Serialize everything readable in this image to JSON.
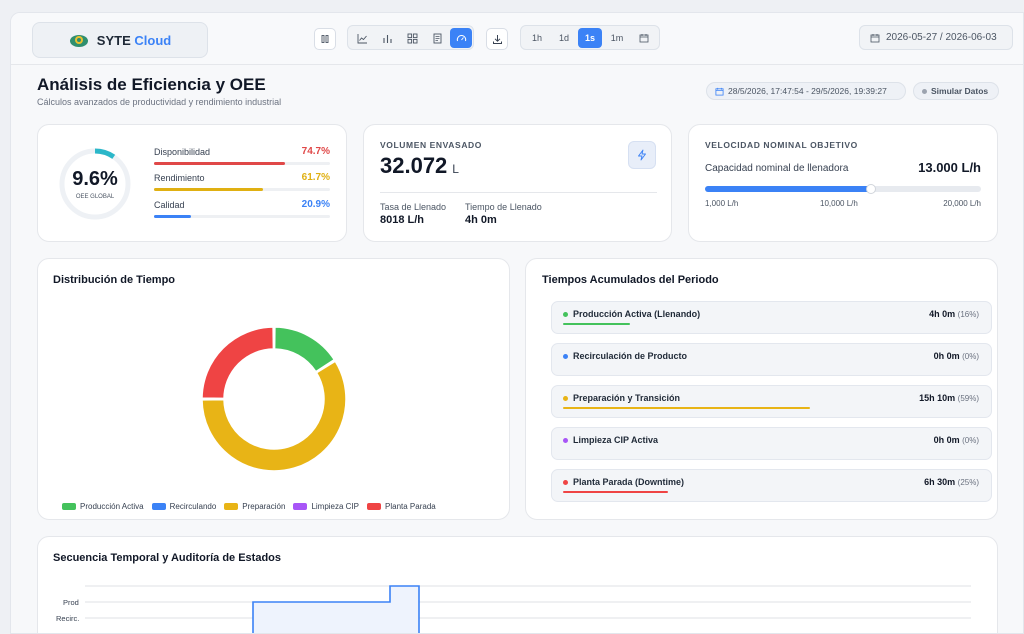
{
  "brand": {
    "name": "SYTE",
    "suffix": "Cloud"
  },
  "toolbar": {
    "views": [
      "chart-line",
      "chart-bar",
      "grid",
      "document",
      "gauge"
    ],
    "active_view": "gauge",
    "time_buttons": [
      "1h",
      "1d",
      "1s",
      "1m"
    ],
    "active_time": "1s",
    "date_range": "2026-05-27 / 2026-06-03"
  },
  "header": {
    "title": "Análisis de Eficiencia y OEE",
    "subtitle": "Cálculos avanzados de productividad y rendimiento industrial",
    "range_pill": "28/5/2026, 17:47:54 - 29/5/2026, 19:39:27",
    "simulate_label": "Simular Datos"
  },
  "oee": {
    "value": "9.6%",
    "label": "OEE GLOBAL",
    "fraction": 0.096,
    "metrics": [
      {
        "name": "Disponibilidad",
        "pct": "74.7%",
        "fraction": 0.747,
        "color": "#e04848"
      },
      {
        "name": "Rendimiento",
        "pct": "61.7%",
        "fraction": 0.617,
        "color": "#e0b012"
      },
      {
        "name": "Calidad",
        "pct": "20.9%",
        "fraction": 0.209,
        "color": "#3b82f6"
      }
    ]
  },
  "volume": {
    "label": "VOLUMEN ENVASADO",
    "value": "32.072",
    "unit": "L",
    "rate_label": "Tasa de Llenado",
    "rate_value": "8018 L/h",
    "time_label": "Tiempo de Llenado",
    "time_value": "4h 0m"
  },
  "speed": {
    "label": "VELOCIDAD NOMINAL OBJETIVO",
    "capacity_label": "Capacidad nominal de llenadora",
    "capacity_value": "13.000 L/h",
    "slider_fraction": 0.6,
    "min": "1,000 L/h",
    "mid": "10,000 L/h",
    "max": "20,000 L/h"
  },
  "distribution": {
    "title": "Distribución de Tiempo",
    "legend": [
      {
        "label": "Producción Activa",
        "color": "#44c25c"
      },
      {
        "label": "Recirculando",
        "color": "#3b82f6"
      },
      {
        "label": "Preparación",
        "color": "#e8b416"
      },
      {
        "label": "Limpieza CIP",
        "color": "#a855f7"
      },
      {
        "label": "Planta Parada",
        "color": "#ef4444"
      }
    ],
    "chart_data": {
      "type": "pie",
      "categories": [
        "Producción Activa",
        "Recirculando",
        "Preparación",
        "Limpieza CIP",
        "Planta Parada"
      ],
      "values": [
        16,
        0,
        59,
        0,
        25
      ]
    }
  },
  "accumulated": {
    "title": "Tiempos Acumulados del Periodo",
    "rows": [
      {
        "name": "Producción Activa (Llenando)",
        "value": "4h 0m",
        "pct": "(16%)",
        "fraction": 0.16,
        "color": "#44c25c"
      },
      {
        "name": "Recirculación de Producto",
        "value": "0h 0m",
        "pct": "(0%)",
        "fraction": 0,
        "color": "#3b82f6"
      },
      {
        "name": "Preparación y Transición",
        "value": "15h 10m",
        "pct": "(59%)",
        "fraction": 0.59,
        "color": "#e8b416"
      },
      {
        "name": "Limpieza CIP Activa",
        "value": "0h 0m",
        "pct": "(0%)",
        "fraction": 0,
        "color": "#a855f7"
      },
      {
        "name": "Planta Parada (Downtime)",
        "value": "6h 30m",
        "pct": "(25%)",
        "fraction": 0.25,
        "color": "#ef4444"
      }
    ]
  },
  "sequence": {
    "title": "Secuencia Temporal y Auditoría de Estados",
    "y_labels": [
      "Prod",
      "Recirc."
    ]
  }
}
